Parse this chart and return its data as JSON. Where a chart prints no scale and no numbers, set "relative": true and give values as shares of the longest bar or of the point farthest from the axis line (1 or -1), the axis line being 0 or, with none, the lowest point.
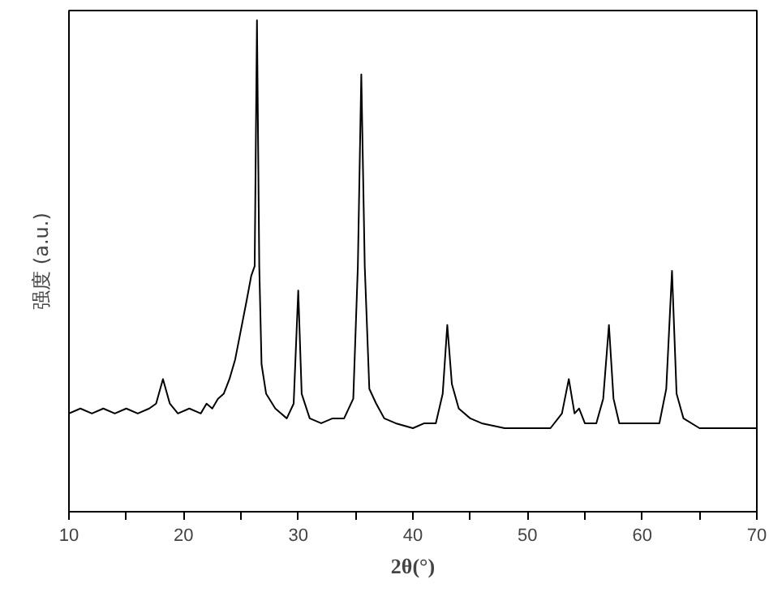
{
  "chart_data": {
    "type": "line",
    "xlabel": "2θ(°)",
    "ylabel": "强度 (a.u.)",
    "relative": true,
    "xlim": [
      10,
      70
    ],
    "xticks": [
      10,
      {
        "value": 15,
        "label": null
      },
      20,
      {
        "value": 25,
        "label": null
      },
      30,
      {
        "value": 35,
        "label": null
      },
      40,
      {
        "value": 45,
        "label": null
      },
      50,
      {
        "value": 55,
        "label": null
      },
      60,
      {
        "value": 65,
        "label": null
      },
      70
    ],
    "series": [
      {
        "color": "#000000",
        "x": [
          10,
          11,
          12,
          13,
          14,
          15,
          16,
          17,
          17.6,
          18.2,
          18.8,
          19.5,
          20.5,
          21.5,
          22,
          22.5,
          23,
          23.5,
          24,
          24.5,
          25,
          25.5,
          25.9,
          26.2,
          26.4,
          26.6,
          26.8,
          27.2,
          28,
          29,
          29.6,
          30.0,
          30.3,
          31,
          32,
          33,
          34,
          34.8,
          35.2,
          35.5,
          35.8,
          36.2,
          36.8,
          37.5,
          38.5,
          40,
          41,
          42,
          42.6,
          43.0,
          43.4,
          44,
          45,
          46,
          48,
          50,
          52,
          53,
          53.6,
          54.1,
          54.5,
          55,
          56,
          56.6,
          57.1,
          57.5,
          58,
          60,
          61.5,
          62.1,
          62.6,
          63.0,
          63.6,
          65,
          67,
          70
        ],
        "values": [
          0.2,
          0.21,
          0.2,
          0.21,
          0.2,
          0.21,
          0.2,
          0.21,
          0.22,
          0.27,
          0.22,
          0.2,
          0.21,
          0.2,
          0.22,
          0.21,
          0.23,
          0.24,
          0.27,
          0.31,
          0.37,
          0.43,
          0.48,
          0.5,
          1.0,
          0.5,
          0.3,
          0.24,
          0.21,
          0.19,
          0.22,
          0.45,
          0.24,
          0.19,
          0.18,
          0.19,
          0.19,
          0.23,
          0.5,
          0.89,
          0.5,
          0.25,
          0.22,
          0.19,
          0.18,
          0.17,
          0.18,
          0.18,
          0.24,
          0.38,
          0.26,
          0.21,
          0.19,
          0.18,
          0.17,
          0.17,
          0.17,
          0.2,
          0.27,
          0.2,
          0.21,
          0.18,
          0.18,
          0.23,
          0.38,
          0.23,
          0.18,
          0.18,
          0.18,
          0.25,
          0.49,
          0.24,
          0.19,
          0.17,
          0.17,
          0.17
        ]
      }
    ],
    "tick_labels": "x"
  }
}
